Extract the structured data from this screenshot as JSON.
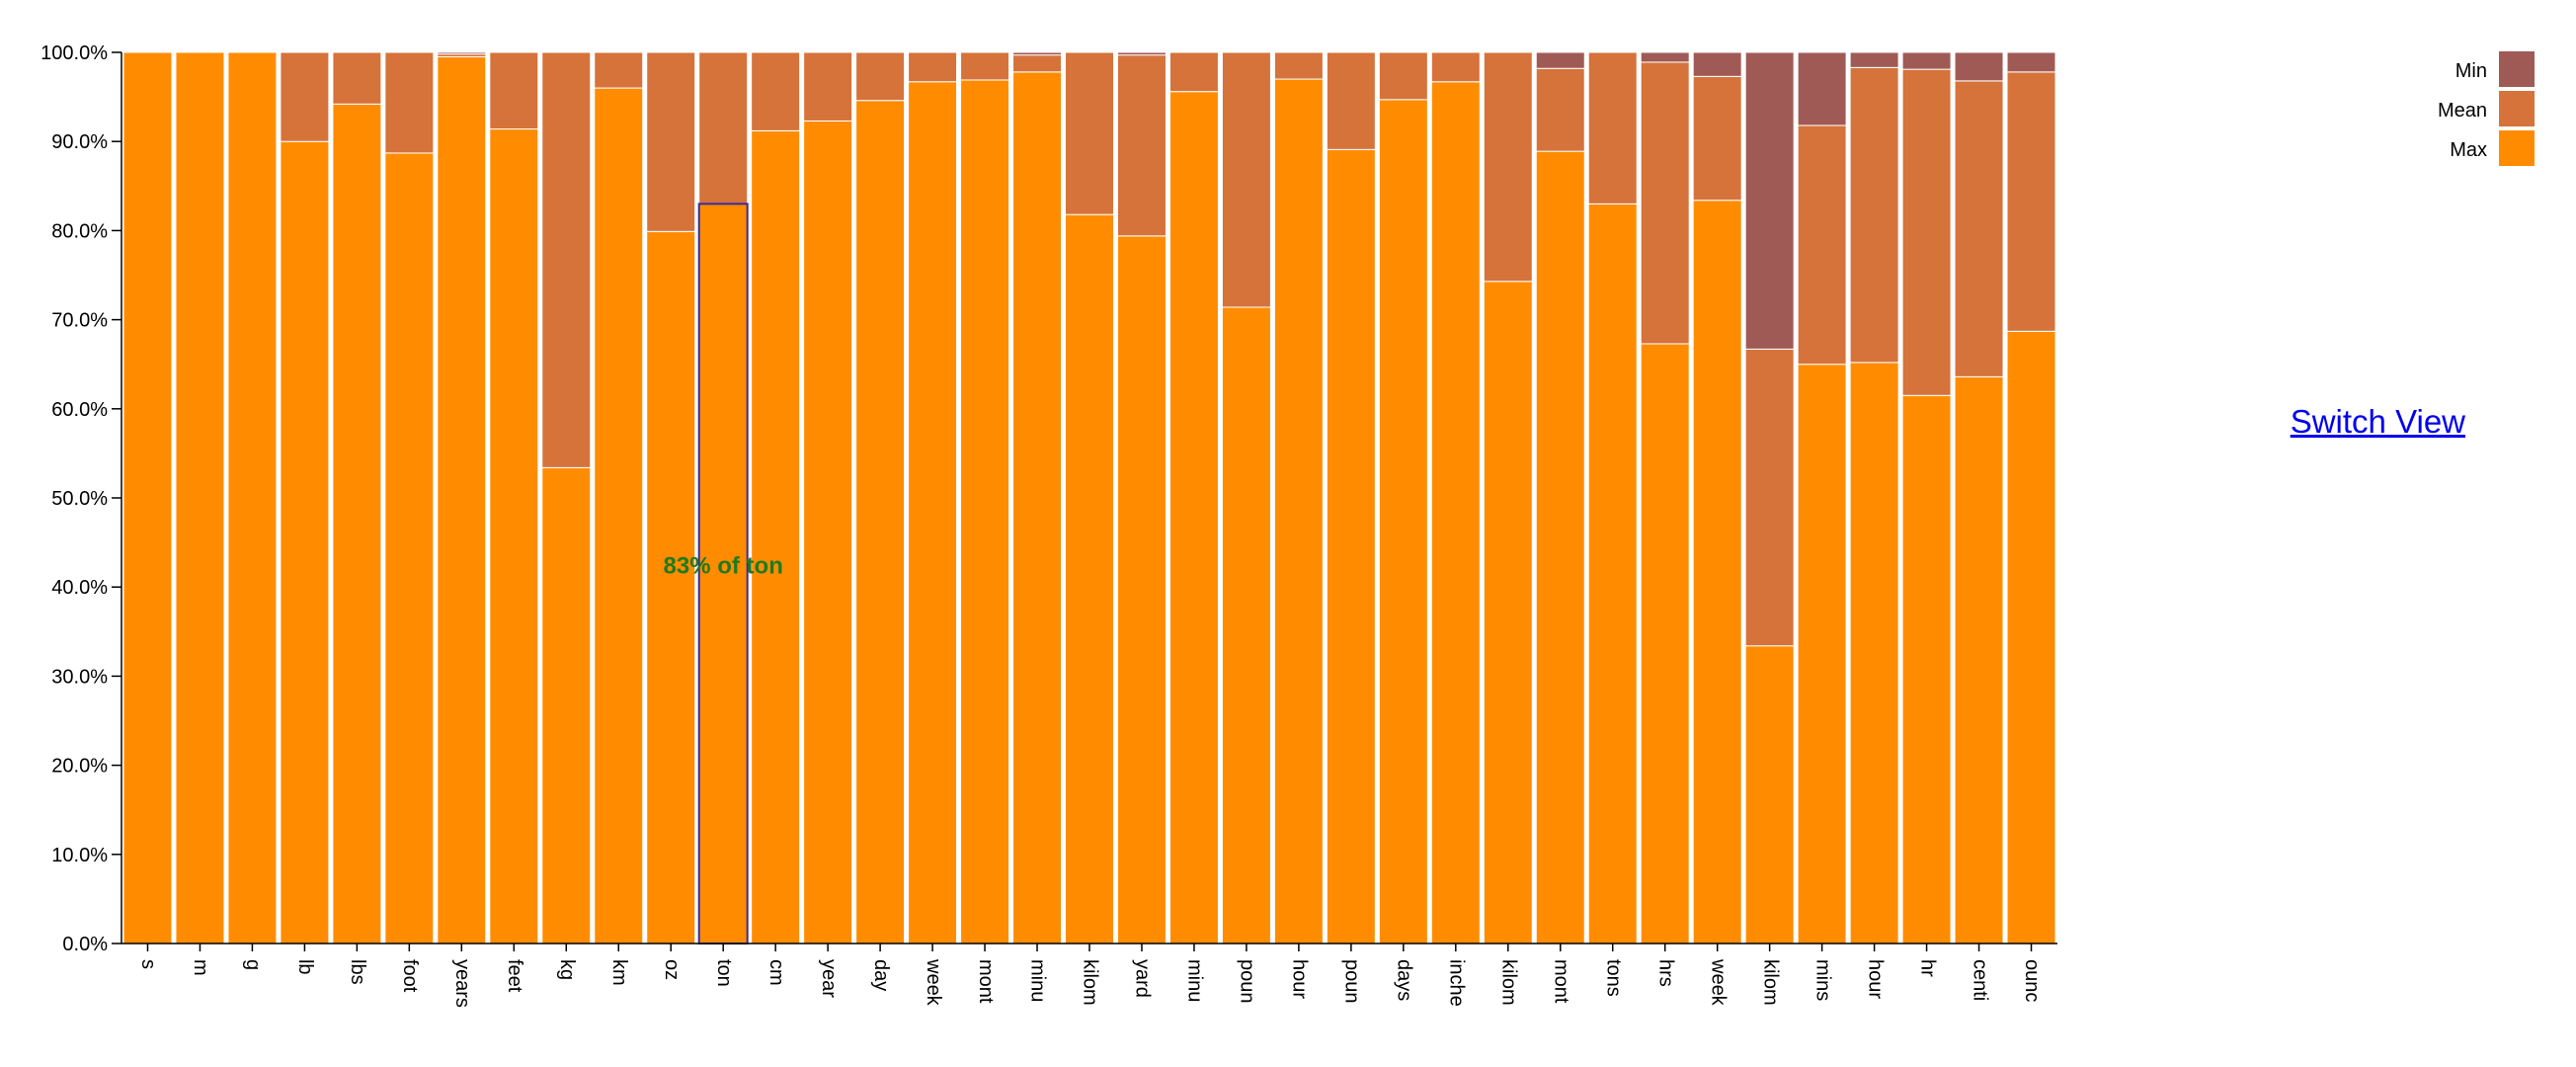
{
  "switch_view_label": "Switch View",
  "hover_label": "83% of ton",
  "colors": {
    "min": "#a05a55",
    "mean": "#d5733b",
    "max": "#ff8c00",
    "highlight": "#3a2a9e"
  },
  "chart_data": {
    "type": "bar",
    "stacked": true,
    "normalized": true,
    "title": "",
    "xlabel": "",
    "ylabel": "",
    "ylim": [
      0,
      100
    ],
    "yticks": [
      "0.0%",
      "10.0%",
      "20.0%",
      "30.0%",
      "40.0%",
      "50.0%",
      "60.0%",
      "70.0%",
      "80.0%",
      "90.0%",
      "100.0%"
    ],
    "legend_position": "top-right",
    "categories": [
      "s",
      "m",
      "g",
      "lb",
      "lbs",
      "foot",
      "years",
      "feet",
      "kg",
      "km",
      "oz",
      "ton",
      "cm",
      "year",
      "day",
      "weeks",
      "months",
      "minutes",
      "kilometers",
      "yards",
      "minute",
      "pounds",
      "hours",
      "pound",
      "days",
      "inches",
      "kilograms",
      "month",
      "tons",
      "hrs",
      "week",
      "kilometer",
      "mins",
      "hour",
      "hr",
      "centimeters",
      "ounces"
    ],
    "tick_labels": [
      "s",
      "m",
      "g",
      "lb",
      "lbs",
      "foot",
      "years",
      "feet",
      "kg",
      "km",
      "oz",
      "ton",
      "cm",
      "year",
      "day",
      "week",
      "mont",
      "minu",
      "kilom",
      "yard",
      "minu",
      "poun",
      "hour",
      "poun",
      "days",
      "inche",
      "kilom",
      "mont",
      "tons",
      "hrs",
      "week",
      "kilom",
      "mins",
      "hour",
      "hr",
      "centi",
      "ounc"
    ],
    "highlighted": "ton",
    "series": [
      {
        "name": "Max",
        "values": [
          100,
          100,
          100,
          90,
          94.2,
          88.7,
          99.5,
          91.4,
          53.4,
          96.0,
          79.9,
          83.0,
          91.2,
          92.3,
          94.6,
          96.7,
          96.9,
          97.8,
          81.8,
          79.4,
          95.6,
          71.4,
          97.0,
          89.1,
          94.7,
          96.7,
          74.3,
          88.9,
          83.0,
          67.3,
          83.4,
          33.4,
          65.0,
          65.2,
          61.5,
          63.6,
          68.7
        ]
      },
      {
        "name": "Mean",
        "values": [
          0,
          0,
          0,
          10,
          5.8,
          11.3,
          0.3,
          8.6,
          46.6,
          4.0,
          20.1,
          17.0,
          8.8,
          7.7,
          5.4,
          3.3,
          3.1,
          1.9,
          18.2,
          20.3,
          4.4,
          28.6,
          3.0,
          10.9,
          5.3,
          3.3,
          25.7,
          9.3,
          17.0,
          31.6,
          13.9,
          33.3,
          26.8,
          33.1,
          36.6,
          33.2,
          29.1
        ]
      },
      {
        "name": "Min",
        "values": [
          0,
          0,
          0,
          0,
          0,
          0,
          0.2,
          0,
          0,
          0,
          0,
          0,
          0,
          0,
          0,
          0,
          0,
          0.3,
          0,
          0.3,
          0,
          0,
          0,
          0,
          0,
          0,
          0,
          1.8,
          0,
          1.1,
          2.7,
          33.3,
          8.2,
          1.7,
          1.9,
          3.2,
          2.2
        ]
      }
    ]
  }
}
